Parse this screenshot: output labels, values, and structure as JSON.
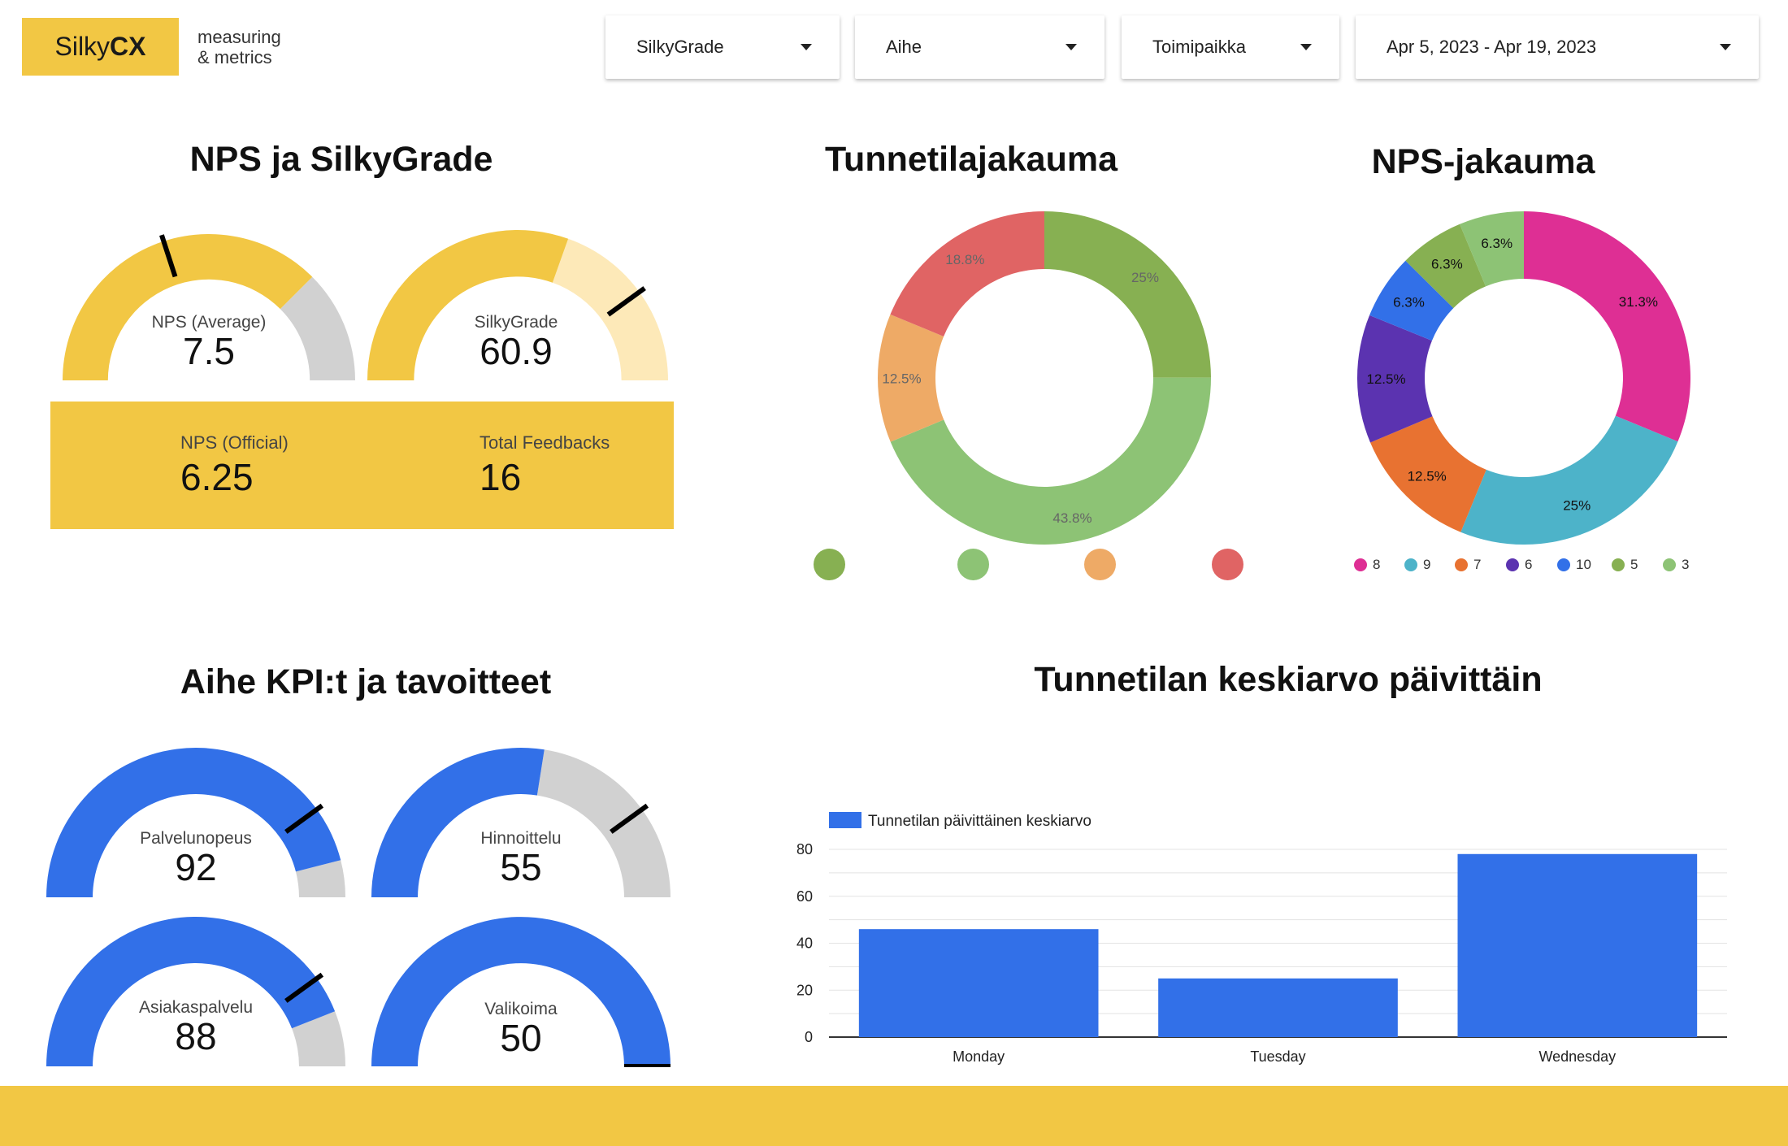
{
  "brand": {
    "name_light": "Silky",
    "name_bold": "CX",
    "tagline_1": "measuring",
    "tagline_2": "& metrics",
    "color": "#f2c744"
  },
  "filters": [
    {
      "label": "SilkyGrade"
    },
    {
      "label": "Aihe"
    },
    {
      "label": "Toimipaikka"
    },
    {
      "label": "Apr 5, 2023 - Apr 19, 2023"
    }
  ],
  "nps_section": {
    "title": "NPS ja SilkyGrade",
    "nps_average": {
      "label": "NPS (Average)",
      "value": "7.5",
      "fill": 0.75,
      "target": 0.4
    },
    "silkygrade": {
      "label": "SilkyGrade",
      "value": "60.9",
      "fill": 0.609,
      "target": 0.8
    },
    "nps_official": {
      "label": "NPS (Official)",
      "value": "6.25"
    },
    "total_feedbacks": {
      "label": "Total Feedbacks",
      "value": "16"
    }
  },
  "mood_section": {
    "title": "Tunnetilajakauma",
    "chart_data": {
      "type": "pie",
      "slices": [
        {
          "label": "25%",
          "value": 25,
          "color": "#87b052"
        },
        {
          "label": "43.8%",
          "value": 43.8,
          "color": "#8dc375"
        },
        {
          "label": "12.5%",
          "value": 12.5,
          "color": "#eeaa66"
        },
        {
          "label": "18.8%",
          "value": 18.8,
          "color": "#e06464"
        }
      ]
    }
  },
  "nps_distribution": {
    "title": "NPS-jakauma",
    "chart_data": {
      "type": "pie",
      "slices": [
        {
          "name": "8",
          "label": "31.3%",
          "value": 31.3,
          "color": "#de2f94"
        },
        {
          "name": "9",
          "label": "25%",
          "value": 25,
          "color": "#4db3c9"
        },
        {
          "name": "7",
          "label": "12.5%",
          "value": 12.5,
          "color": "#e87231"
        },
        {
          "name": "6",
          "label": "12.5%",
          "value": 12.5,
          "color": "#5b33b0"
        },
        {
          "name": "10",
          "label": "6.3%",
          "value": 6.3,
          "color": "#3270e8"
        },
        {
          "name": "5",
          "label": "6.3%",
          "value": 6.3,
          "color": "#87b052"
        },
        {
          "name": "3",
          "label": "6.3%",
          "value": 6.3,
          "color": "#8dc375"
        }
      ]
    }
  },
  "kpi_section": {
    "title": "Aihe KPI:t ja tavoitteet",
    "gauges": [
      {
        "label": "Palvelunopeus",
        "value": "92",
        "fill": 0.92,
        "target": 0.8
      },
      {
        "label": "Hinnoittelu",
        "value": "55",
        "fill": 0.55,
        "target": 0.8
      },
      {
        "label": "Asiakaspalvelu",
        "value": "88",
        "fill": 0.88,
        "target": 0.8
      },
      {
        "label": "Valikoima",
        "value": "50",
        "fill": 1.0,
        "target": 1.0
      }
    ]
  },
  "daily_section": {
    "title": "Tunnetilan keskiarvo päivittäin",
    "chart_data": {
      "type": "bar",
      "categories": [
        "Monday",
        "Tuesday",
        "Wednesday"
      ],
      "series": [
        {
          "name": "Tunnetilan päivittäinen keskiarvo",
          "values": [
            46,
            25,
            78
          ],
          "color": "#3270e8"
        }
      ],
      "ylim": [
        0,
        80
      ],
      "yticks": [
        "0",
        "20",
        "40",
        "60",
        "80"
      ]
    }
  }
}
